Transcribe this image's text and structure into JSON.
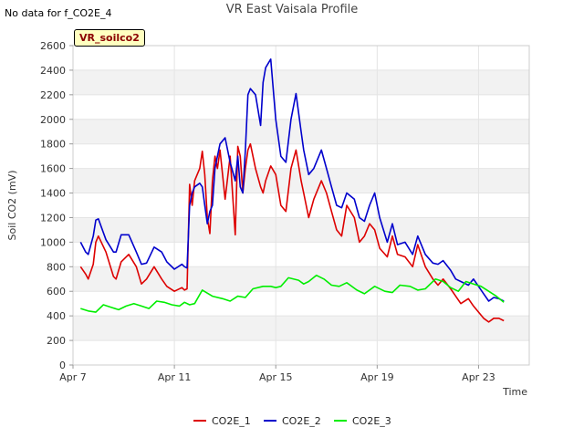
{
  "note": "No data for f_CO2E_4",
  "badge": "VR_soilco2",
  "chart_data": {
    "type": "line",
    "title": "VR East Vaisala Profile",
    "xlabel": "Time",
    "ylabel": "Soil CO2 (mV)",
    "ylim": [
      0,
      2600
    ],
    "yticks": [
      0,
      200,
      400,
      600,
      800,
      1000,
      1200,
      1400,
      1600,
      1800,
      2000,
      2200,
      2400,
      2600
    ],
    "xlim": [
      0,
      18
    ],
    "xticks": [
      {
        "x": 0,
        "label": "Apr 7"
      },
      {
        "x": 4,
        "label": "Apr 11"
      },
      {
        "x": 8,
        "label": "Apr 15"
      },
      {
        "x": 12,
        "label": "Apr 19"
      },
      {
        "x": 16,
        "label": "Apr 23"
      }
    ],
    "grid": true,
    "legend_position": "bottom",
    "series": [
      {
        "name": "CO2E_1",
        "color": "#dd0000",
        "x": [
          0.3,
          0.5,
          0.6,
          0.8,
          0.9,
          1.0,
          1.3,
          1.6,
          1.7,
          1.9,
          2.2,
          2.5,
          2.7,
          2.9,
          3.2,
          3.5,
          3.7,
          4.0,
          4.3,
          4.4,
          4.5,
          4.6,
          4.7,
          4.8,
          5.0,
          5.1,
          5.2,
          5.3,
          5.4,
          5.5,
          5.6,
          5.7,
          5.8,
          6.0,
          6.2,
          6.4,
          6.5,
          6.6,
          6.7,
          6.8,
          6.9,
          7.0,
          7.2,
          7.4,
          7.5,
          7.6,
          7.8,
          8.0,
          8.2,
          8.4,
          8.6,
          8.8,
          9.0,
          9.1,
          9.3,
          9.5,
          9.8,
          10.0,
          10.2,
          10.4,
          10.6,
          10.8,
          11.1,
          11.3,
          11.5,
          11.7,
          11.9,
          12.1,
          12.4,
          12.6,
          12.8,
          13.1,
          13.4,
          13.6,
          13.9,
          14.2,
          14.4,
          14.6,
          14.9,
          15.1,
          15.3,
          15.6,
          15.8,
          16.2,
          16.4,
          16.6,
          16.8,
          17.0
        ],
        "y": [
          800,
          740,
          700,
          820,
          1000,
          1050,
          920,
          720,
          700,
          840,
          900,
          800,
          660,
          700,
          800,
          700,
          640,
          600,
          630,
          610,
          620,
          1470,
          1300,
          1500,
          1600,
          1740,
          1550,
          1200,
          1070,
          1500,
          1700,
          1600,
          1750,
          1350,
          1700,
          1060,
          1780,
          1700,
          1400,
          1600,
          1750,
          1800,
          1600,
          1450,
          1400,
          1500,
          1620,
          1550,
          1300,
          1250,
          1600,
          1750,
          1500,
          1400,
          1200,
          1350,
          1500,
          1400,
          1250,
          1100,
          1050,
          1300,
          1200,
          1000,
          1050,
          1150,
          1100,
          950,
          880,
          1050,
          900,
          880,
          800,
          980,
          800,
          700,
          650,
          700,
          620,
          560,
          500,
          540,
          480,
          380,
          350,
          380,
          380,
          360
        ]
      },
      {
        "name": "CO2E_2",
        "color": "#0000cc",
        "x": [
          0.3,
          0.5,
          0.6,
          0.8,
          0.9,
          1.0,
          1.3,
          1.6,
          1.7,
          1.9,
          2.2,
          2.5,
          2.7,
          2.9,
          3.2,
          3.5,
          3.7,
          4.0,
          4.3,
          4.4,
          4.5,
          4.6,
          4.7,
          4.8,
          5.0,
          5.1,
          5.2,
          5.3,
          5.4,
          5.5,
          5.6,
          5.7,
          5.8,
          6.0,
          6.2,
          6.4,
          6.5,
          6.6,
          6.7,
          6.8,
          6.9,
          7.0,
          7.2,
          7.4,
          7.5,
          7.6,
          7.8,
          8.0,
          8.2,
          8.4,
          8.6,
          8.8,
          9.0,
          9.1,
          9.3,
          9.5,
          9.8,
          10.0,
          10.2,
          10.4,
          10.6,
          10.8,
          11.1,
          11.3,
          11.5,
          11.7,
          11.9,
          12.1,
          12.4,
          12.6,
          12.8,
          13.1,
          13.4,
          13.6,
          13.9,
          14.2,
          14.4,
          14.6,
          14.9,
          15.1,
          15.3,
          15.6,
          15.8,
          16.2,
          16.4,
          16.6,
          16.8,
          17.0
        ],
        "y": [
          1000,
          920,
          900,
          1050,
          1180,
          1190,
          1020,
          920,
          920,
          1060,
          1060,
          920,
          820,
          830,
          960,
          920,
          840,
          780,
          820,
          800,
          790,
          1300,
          1400,
          1450,
          1480,
          1450,
          1300,
          1150,
          1250,
          1300,
          1600,
          1700,
          1800,
          1850,
          1650,
          1500,
          1700,
          1450,
          1400,
          1750,
          2200,
          2250,
          2200,
          1950,
          2300,
          2420,
          2490,
          2000,
          1700,
          1650,
          2000,
          2210,
          1900,
          1750,
          1550,
          1600,
          1750,
          1600,
          1450,
          1300,
          1280,
          1400,
          1350,
          1200,
          1170,
          1300,
          1400,
          1200,
          1000,
          1150,
          980,
          1000,
          900,
          1050,
          900,
          830,
          820,
          850,
          770,
          700,
          680,
          650,
          700,
          580,
          520,
          550,
          540,
          520
        ]
      },
      {
        "name": "CO2E_3",
        "color": "#00ee00",
        "x": [
          0.3,
          0.6,
          0.9,
          1.2,
          1.5,
          1.8,
          2.1,
          2.4,
          2.7,
          3.0,
          3.3,
          3.6,
          3.9,
          4.2,
          4.4,
          4.6,
          4.8,
          5.1,
          5.5,
          5.9,
          6.2,
          6.5,
          6.8,
          7.1,
          7.5,
          7.8,
          8.0,
          8.2,
          8.5,
          8.9,
          9.1,
          9.3,
          9.6,
          9.9,
          10.2,
          10.5,
          10.8,
          11.2,
          11.5,
          11.9,
          12.3,
          12.6,
          12.9,
          13.3,
          13.6,
          13.9,
          14.3,
          14.6,
          14.9,
          15.2,
          15.5,
          15.8,
          16.1,
          16.4,
          16.7,
          17.0
        ],
        "y": [
          460,
          440,
          430,
          490,
          470,
          450,
          480,
          500,
          480,
          460,
          520,
          510,
          490,
          480,
          510,
          490,
          500,
          610,
          560,
          540,
          520,
          560,
          550,
          620,
          640,
          640,
          630,
          640,
          710,
          690,
          660,
          680,
          730,
          700,
          650,
          640,
          670,
          610,
          580,
          640,
          600,
          590,
          650,
          640,
          610,
          620,
          700,
          680,
          630,
          600,
          680,
          660,
          640,
          600,
          560,
          510
        ]
      }
    ]
  }
}
